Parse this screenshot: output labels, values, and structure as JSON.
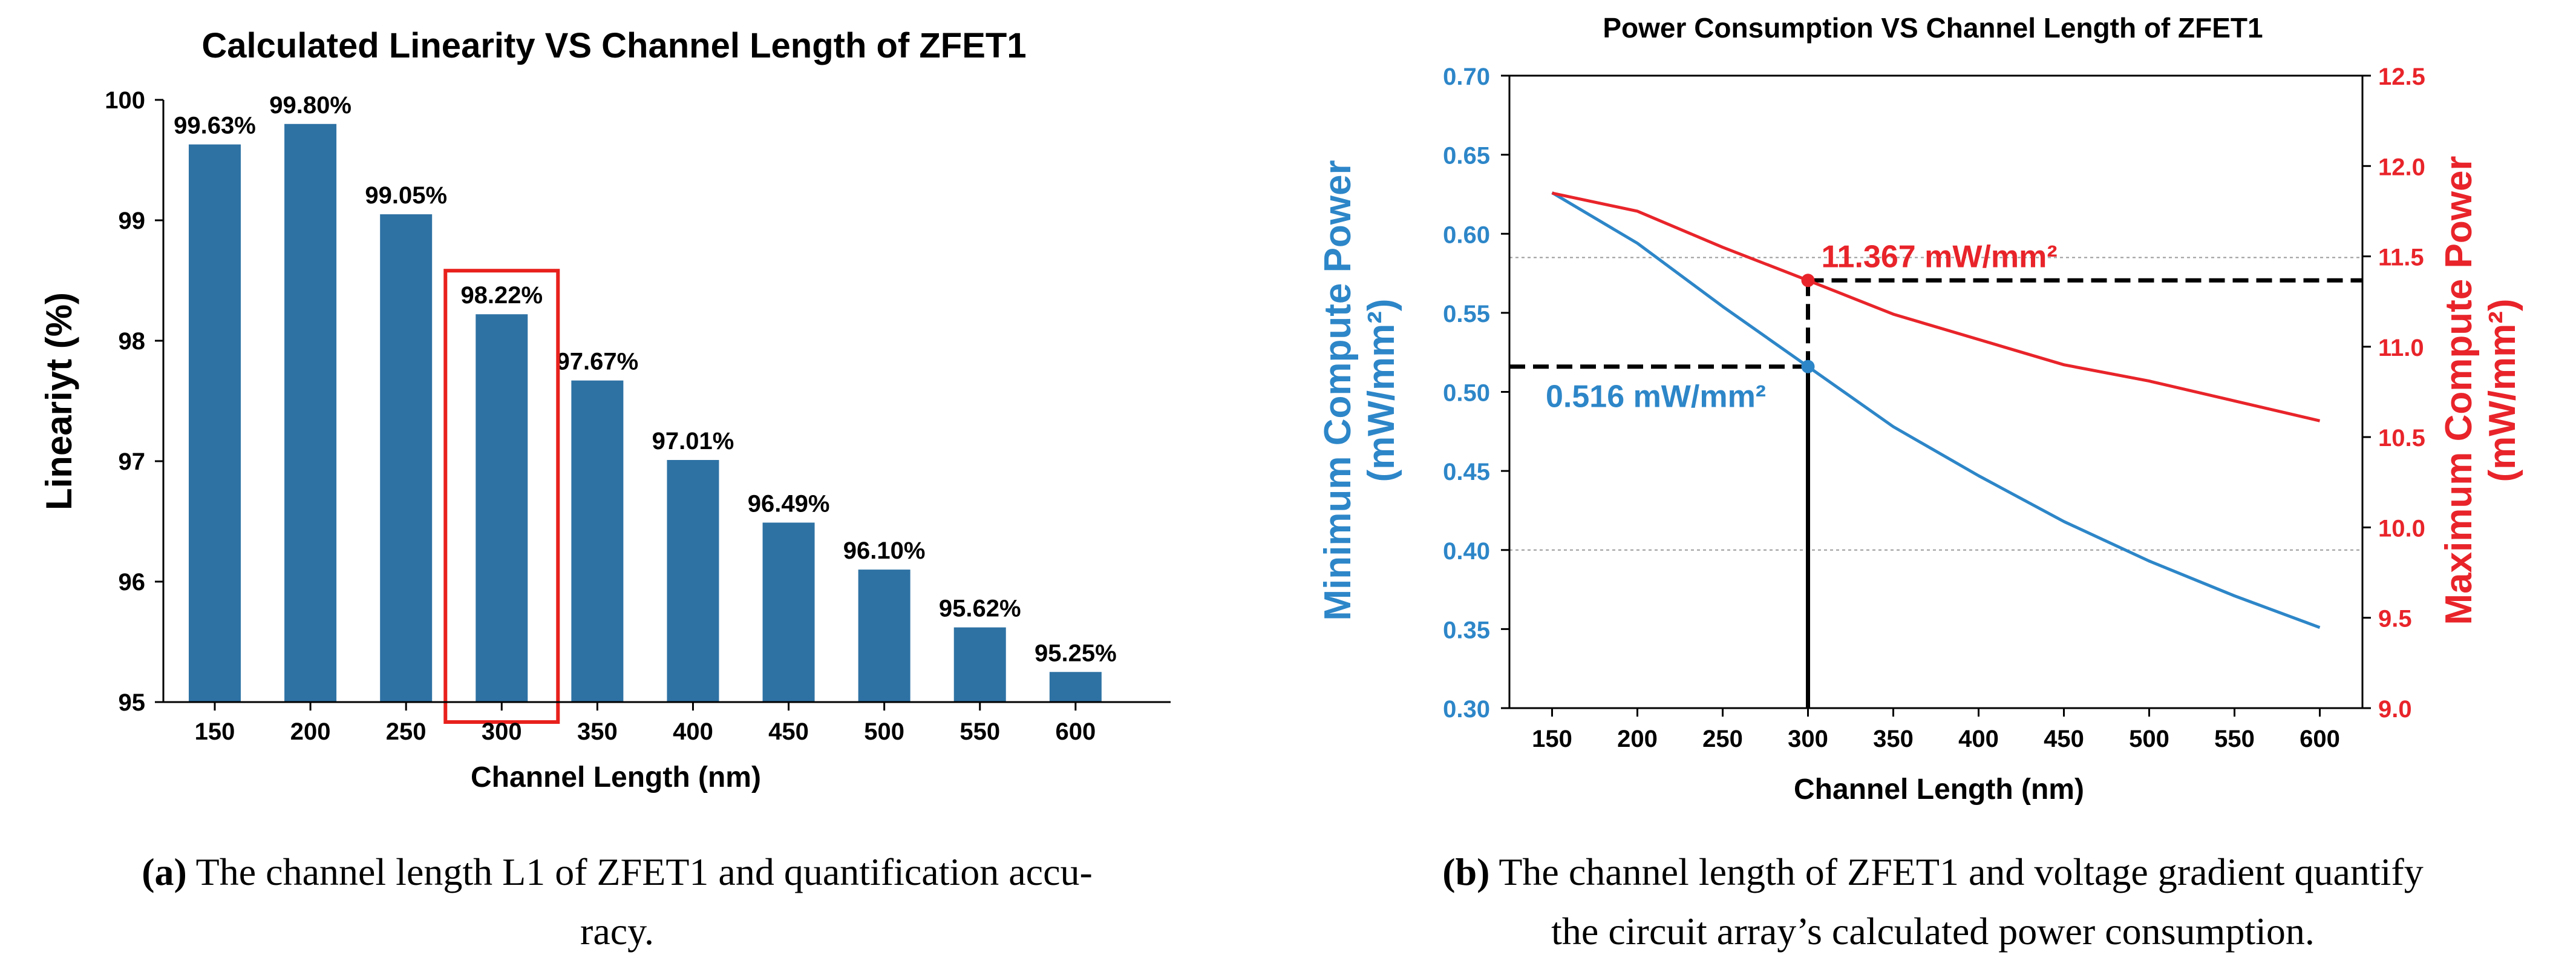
{
  "chart_data": [
    {
      "type": "bar",
      "title": "Calculated Linearity VS Channel Length of ZFET1",
      "xlabel": "Channel Length (nm)",
      "ylabel": "Lineariyt (%)",
      "categories": [
        "150",
        "200",
        "250",
        "300",
        "350",
        "400",
        "450",
        "500",
        "550",
        "600"
      ],
      "values": [
        99.63,
        99.8,
        99.05,
        98.22,
        97.67,
        97.01,
        96.49,
        96.1,
        95.62,
        95.25
      ],
      "data_labels": [
        "99.63%",
        "99.80%",
        "99.05%",
        "98.22%",
        "97.67%",
        "97.01%",
        "96.49%",
        "96.10%",
        "95.62%",
        "95.25%"
      ],
      "ylim": [
        95,
        100
      ],
      "yticks": [
        "95",
        "96",
        "97",
        "98",
        "99",
        "100"
      ],
      "highlight_category": "300",
      "bar_color": "#2e72a4",
      "highlight_color": "#e8201c"
    },
    {
      "type": "line",
      "title": "Power Consumption VS Channel Length of ZFET1",
      "xlabel": "Channel Length (nm)",
      "ylabel_left": "Minimum Compute Power",
      "ylabel_left_unit": "(mW/mm²)",
      "ylabel_right": "Maximum Compute Power",
      "ylabel_right_unit": "(mW/mm²)",
      "x": [
        150,
        200,
        250,
        300,
        350,
        400,
        450,
        500,
        550,
        600
      ],
      "xticks": [
        "150",
        "200",
        "250",
        "300",
        "350",
        "400",
        "450",
        "500",
        "550",
        "600"
      ],
      "xlim": [
        125,
        625
      ],
      "series": [
        {
          "name": "Minimum Compute Power",
          "axis": "left",
          "color": "#2d86c8",
          "values": [
            0.626,
            0.594,
            0.554,
            0.516,
            0.478,
            0.447,
            0.418,
            0.393,
            0.371,
            0.351
          ]
        },
        {
          "name": "Maximum Compute Power",
          "axis": "right",
          "color": "#e8242a",
          "values": [
            11.85,
            11.75,
            11.55,
            11.367,
            11.18,
            11.04,
            10.9,
            10.81,
            10.7,
            10.59
          ]
        }
      ],
      "ylim_left": [
        0.3,
        0.7
      ],
      "yticks_left": [
        "0.30",
        "0.35",
        "0.40",
        "0.45",
        "0.50",
        "0.55",
        "0.60",
        "0.65",
        "0.70"
      ],
      "ylim_right": [
        9.0,
        12.5
      ],
      "yticks_right": [
        "9.0",
        "9.5",
        "10.0",
        "10.5",
        "11.0",
        "11.5",
        "12.0",
        "12.5"
      ],
      "gridlines_left": [
        0.4,
        0.585
      ],
      "annotations": [
        {
          "text": "0.516 mW/mm²",
          "x": 300,
          "y": 0.516,
          "axis": "left",
          "color": "#2d86c8"
        },
        {
          "text": "11.367 mW/mm²",
          "x": 300,
          "y": 11.367,
          "axis": "right",
          "color": "#e8242a"
        }
      ]
    }
  ],
  "captions": {
    "a": {
      "tag": "(a)",
      "line1": " The channel length L1 of ZFET1 and quantification accu-",
      "line2": "racy."
    },
    "b": {
      "tag": "(b)",
      "line1": " The channel length of ZFET1 and voltage gradient quantify",
      "line2": "the circuit array’s calculated power consumption."
    }
  }
}
